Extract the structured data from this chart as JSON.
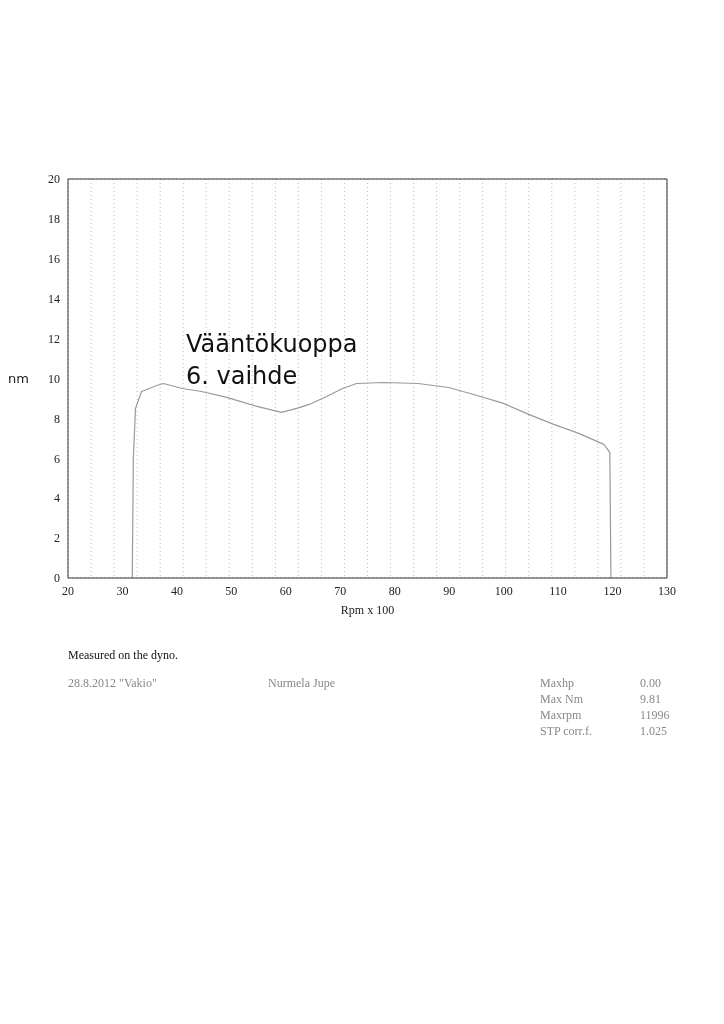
{
  "chart_data": {
    "type": "line",
    "xlabel": "Rpm x 100",
    "ylabel": "nm",
    "x": [
      31.8,
      32.0,
      32.4,
      33.5,
      36.3,
      37.5,
      41,
      44.5,
      49,
      54.7,
      59.2,
      62,
      64.3,
      67.5,
      70.4,
      73,
      77.9,
      84.3,
      89.9,
      94.5,
      100,
      104.6,
      109.2,
      113.8,
      118.4,
      119.5,
      119.7
    ],
    "series": [
      {
        "color": "#9a9a9a",
        "values": [
          0,
          6,
          8.5,
          9.35,
          9.65,
          9.75,
          9.5,
          9.35,
          9.07,
          8.6,
          8.3,
          8.5,
          8.7,
          9.1,
          9.5,
          9.75,
          9.8,
          9.75,
          9.55,
          9.2,
          8.75,
          8.2,
          7.7,
          7.25,
          6.7,
          6.3,
          0
        ]
      }
    ],
    "xlim": [
      20,
      130
    ],
    "xticks": [
      20,
      30,
      40,
      50,
      60,
      70,
      80,
      90,
      100,
      110,
      120,
      130
    ],
    "ylim": [
      0,
      20
    ],
    "yticks": [
      0,
      2,
      4,
      6,
      8,
      10,
      12,
      14,
      16,
      18,
      20
    ],
    "grid": true,
    "marker": "none",
    "line_style": "solid",
    "annotations": [
      "Vääntökuoppa",
      "6. vaihde",
      "Measured on the dyno.",
      "28.8.2012 \"Vakio\"",
      "Nurmela Jupe",
      "Maxhp",
      "0.00",
      "Max Nm",
      "9.81",
      "Maxrpm",
      "11996",
      "STP corr.f.",
      "1.025"
    ]
  }
}
